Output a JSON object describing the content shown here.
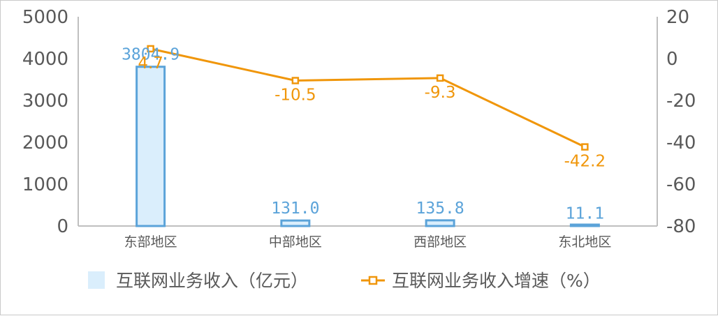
{
  "chart_data": {
    "type": "bar",
    "categories": [
      "东部地区",
      "中部地区",
      "西部地区",
      "东北地区"
    ],
    "series": [
      {
        "name": "互联网业务收入（亿元）",
        "type": "bar",
        "axis": "left",
        "values": [
          3804.9,
          131.0,
          135.8,
          11.1
        ],
        "labels": [
          "3804.9",
          "131.0",
          "135.8",
          "11.1"
        ],
        "color": "#5ba3d9",
        "fill": "#daeefc"
      },
      {
        "name": "互联网业务收入增速（%）",
        "type": "line",
        "axis": "right",
        "values": [
          4.7,
          -10.5,
          -9.3,
          -42.2
        ],
        "labels": [
          "4.7",
          "-10.5",
          "-9.3",
          "-42.2"
        ],
        "color": "#f0960a"
      }
    ],
    "y_left": {
      "ylim": [
        0,
        5000
      ],
      "ticks": [
        0,
        1000,
        2000,
        3000,
        4000,
        5000
      ]
    },
    "y_right": {
      "ylim": [
        -80,
        20
      ],
      "ticks": [
        -80,
        -60,
        -40,
        -20,
        0,
        20
      ]
    },
    "grid": false,
    "legend": "bottom"
  }
}
